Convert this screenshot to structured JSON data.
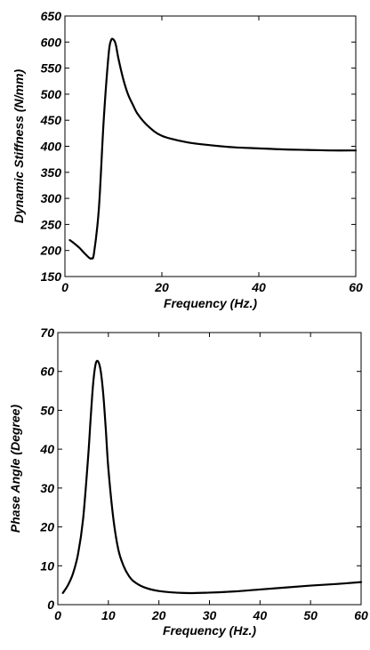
{
  "chart_data": [
    {
      "type": "line",
      "title": "",
      "xlabel": "Frequency  (Hz.)",
      "ylabel": "Dynamic Stiffness (N/mm)",
      "xlim": [
        0,
        60
      ],
      "ylim": [
        150,
        650
      ],
      "x_ticks": [
        0,
        20,
        40,
        60
      ],
      "y_ticks": [
        150,
        200,
        250,
        300,
        350,
        400,
        450,
        500,
        550,
        600,
        650
      ],
      "grid": false,
      "legend": "none",
      "line_color": "#000000",
      "series": [
        {
          "x": [
            1,
            2,
            3,
            4,
            5,
            5.5,
            6,
            7,
            8,
            9,
            9.5,
            10,
            10.5,
            11,
            12,
            13,
            14,
            15,
            17,
            20,
            25,
            30,
            35,
            40,
            45,
            50,
            55,
            60
          ],
          "values": [
            220,
            213,
            205,
            195,
            186,
            185,
            195,
            280,
            450,
            575,
            603,
            605,
            595,
            570,
            530,
            500,
            480,
            462,
            440,
            420,
            408,
            402,
            398,
            396,
            394,
            393,
            392,
            392
          ]
        }
      ]
    },
    {
      "type": "line",
      "title": "",
      "xlabel": "Frequency (Hz.)",
      "ylabel": "Phase Angle (Degree)",
      "xlim": [
        0,
        60
      ],
      "ylim": [
        0,
        70
      ],
      "x_ticks": [
        0,
        10,
        20,
        30,
        40,
        50,
        60
      ],
      "y_ticks": [
        0,
        10,
        20,
        30,
        40,
        50,
        60,
        70
      ],
      "grid": false,
      "legend": "none",
      "line_color": "#000000",
      "series": [
        {
          "x": [
            1,
            2,
            3,
            4,
            5,
            6,
            6.5,
            7,
            7.5,
            8,
            8.5,
            9,
            9.5,
            10,
            11,
            12,
            13,
            14,
            15,
            17,
            20,
            25,
            30,
            35,
            40,
            45,
            50,
            55,
            60
          ],
          "values": [
            3,
            5,
            8,
            13,
            22,
            38,
            48,
            57,
            62,
            62.5,
            60,
            54,
            45,
            35,
            22,
            14,
            10,
            7.5,
            6,
            4.5,
            3.5,
            3,
            3.1,
            3.4,
            3.9,
            4.4,
            4.9,
            5.3,
            5.8
          ]
        }
      ]
    }
  ]
}
